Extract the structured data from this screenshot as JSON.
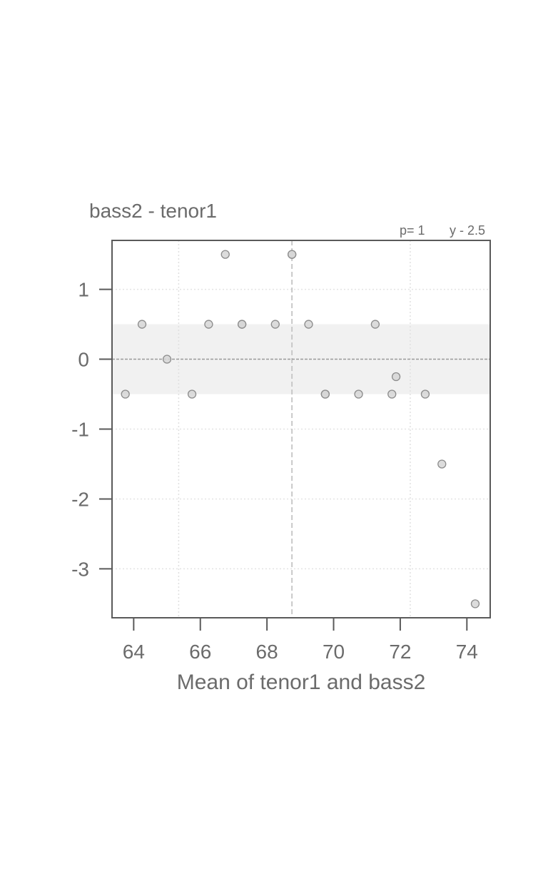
{
  "chart_data": {
    "type": "scatter",
    "title": "bass2 - tenor1",
    "xlabel": "Mean of tenor1 and bass2",
    "ylabel": "",
    "annotation_p": "p=  1",
    "annotation_y": "y - 2.5",
    "xlim": [
      63.35,
      74.7
    ],
    "ylim": [
      -3.7,
      1.7
    ],
    "x_ticks": [
      64,
      66,
      68,
      70,
      72,
      74
    ],
    "y_ticks": [
      1,
      0,
      -1,
      -2,
      -3
    ],
    "x_tick_labels": [
      "64",
      "66",
      "68",
      "70",
      "72",
      "74"
    ],
    "y_tick_labels": [
      "1",
      "0",
      "-1",
      "-2",
      "-3"
    ],
    "band": [
      -0.5,
      0.5
    ],
    "reference_line_y": 0,
    "vertical_lines": {
      "dotted": [
        65.35,
        72.3
      ],
      "dashed": [
        68.75
      ]
    },
    "grid": true,
    "points": {
      "x": [
        63.75,
        64.25,
        65.0,
        65.75,
        66.25,
        66.75,
        67.25,
        67.25,
        68.25,
        68.75,
        68.75,
        69.25,
        69.75,
        69.75,
        70.75,
        71.25,
        71.75,
        71.875,
        72.75,
        73.25,
        74.25
      ],
      "y": [
        -0.5,
        0.5,
        0.0,
        -0.5,
        0.5,
        1.5,
        0.5,
        0.5,
        0.5,
        1.5,
        1.5,
        0.5,
        -0.5,
        -0.5,
        -0.5,
        0.5,
        -0.5,
        -0.25,
        -0.5,
        -1.5,
        -3.5
      ]
    },
    "colors": {
      "point_fill": "#d6d6d6",
      "point_stroke": "#8c8c8c",
      "band": "#f1f1f1",
      "frame": "#5a5a5a",
      "text": "#6b6b6b"
    }
  }
}
